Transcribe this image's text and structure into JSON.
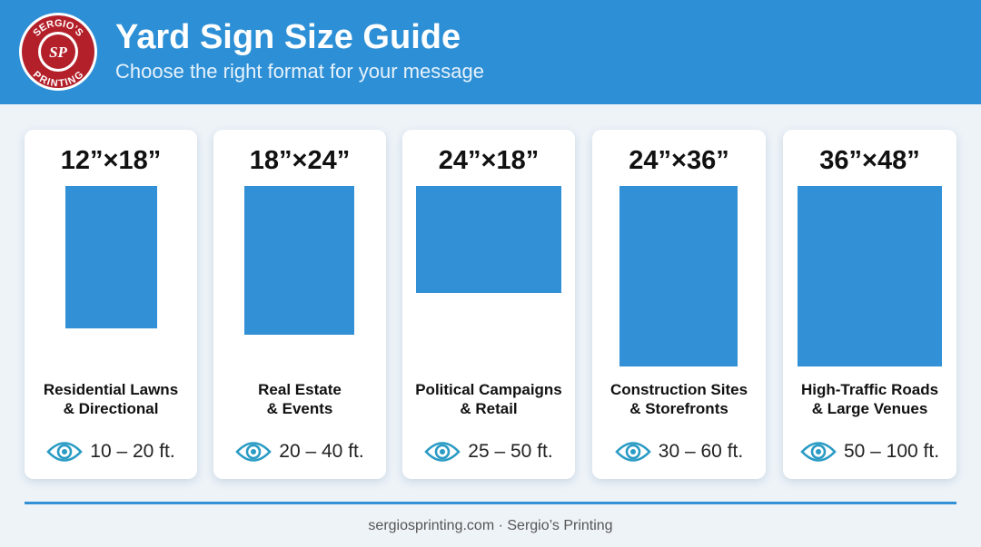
{
  "header": {
    "title": "Yard Sign Size Guide",
    "subtitle": "Choose the right format for your message"
  },
  "logo": {
    "top": "SERGIO’S",
    "monogram": "SP",
    "bottom": "PRINTING"
  },
  "cards": [
    {
      "size": "12”×18”",
      "use": [
        "Residential Lawns",
        "& Directional"
      ],
      "distance": "10 – 20 ft."
    },
    {
      "size": "18”×24”",
      "use": [
        "Real Estate",
        "& Events"
      ],
      "distance": "20 – 40 ft."
    },
    {
      "size": "24”×18”",
      "use": [
        "Political Campaigns",
        "& Retail"
      ],
      "distance": "25 – 50 ft."
    },
    {
      "size": "24”×36”",
      "use": [
        "Construction Sites",
        "& Storefronts"
      ],
      "distance": "30 – 60 ft."
    },
    {
      "size": "36”×48”",
      "use": [
        "High-Traffic Roads",
        "& Large Venues"
      ],
      "distance": "50 – 100 ft."
    }
  ],
  "footer": {
    "text": "sergiosprinting.com · Sergio’s Printing"
  }
}
